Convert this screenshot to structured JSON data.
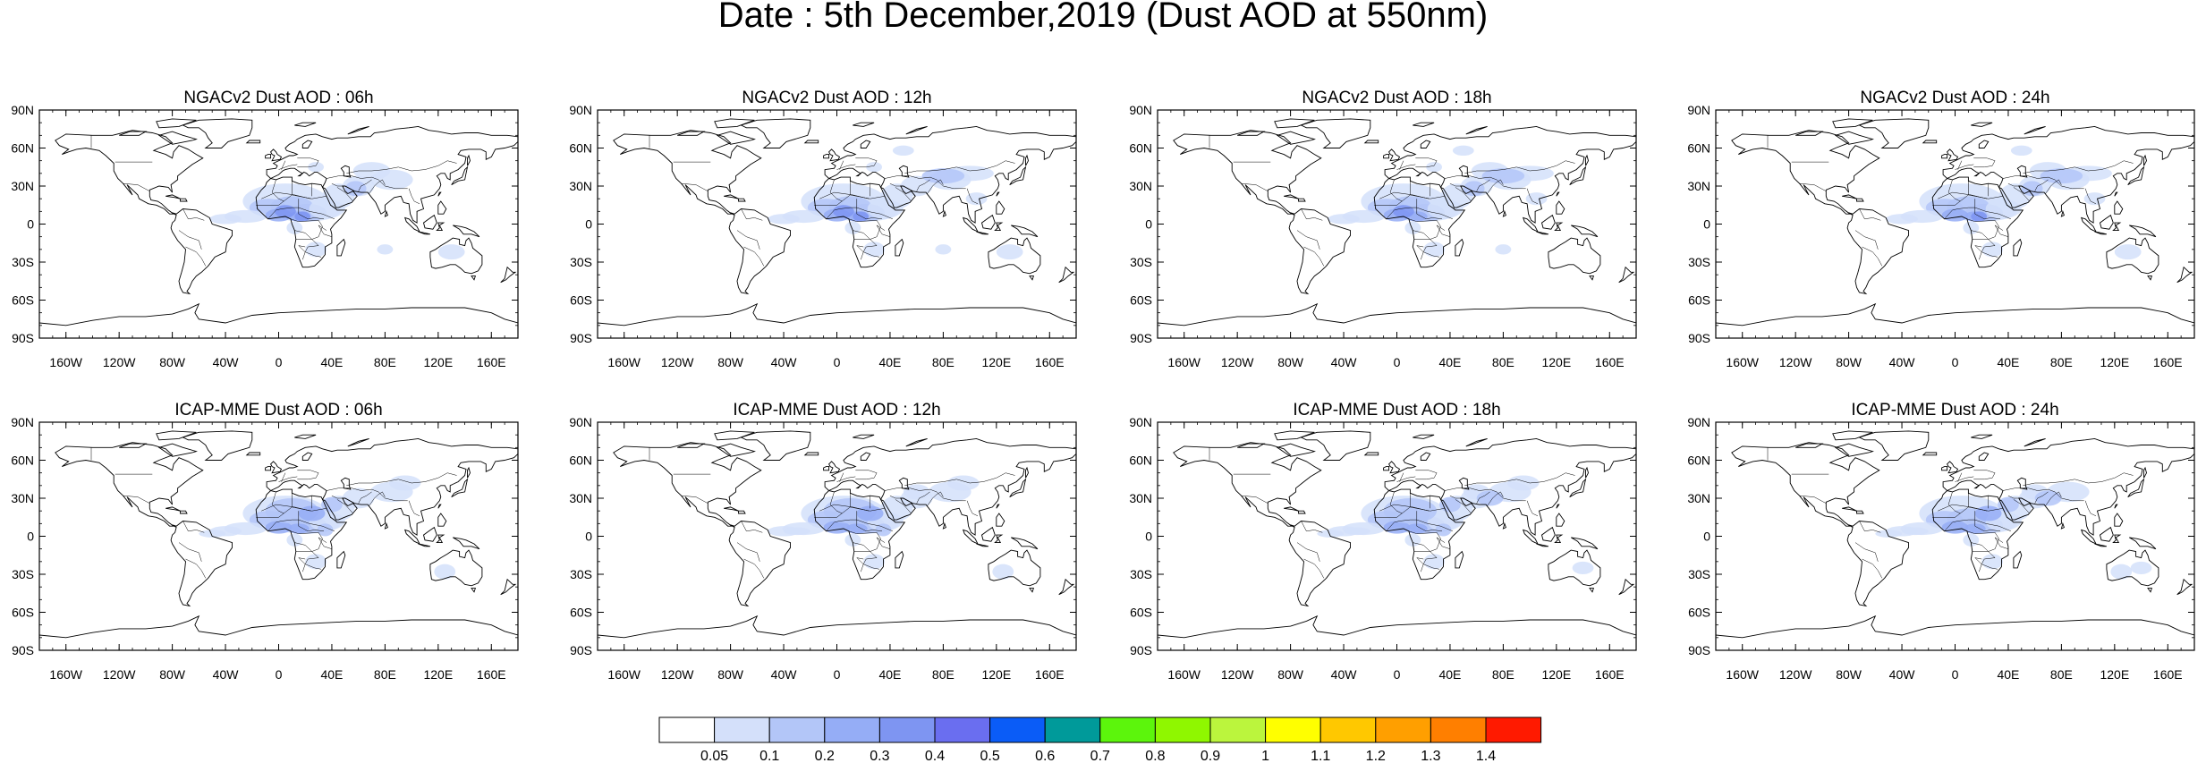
{
  "title": "Date : 5th December,2019 (Dust AOD at 550nm)",
  "panels": [
    {
      "id": "ngac-06",
      "title": "NGACv2 Dust AOD : 06h"
    },
    {
      "id": "ngac-12",
      "title": "NGACv2 Dust AOD : 12h"
    },
    {
      "id": "ngac-18",
      "title": "NGACv2 Dust AOD : 18h"
    },
    {
      "id": "ngac-24",
      "title": "NGACv2 Dust AOD : 24h"
    },
    {
      "id": "icap-06",
      "title": "ICAP-MME Dust AOD : 06h"
    },
    {
      "id": "icap-12",
      "title": "ICAP-MME Dust AOD : 12h"
    },
    {
      "id": "icap-18",
      "title": "ICAP-MME Dust AOD : 18h"
    },
    {
      "id": "icap-24",
      "title": "ICAP-MME Dust AOD : 24h"
    }
  ],
  "axes": {
    "lat_ticks": [
      "90N",
      "60N",
      "30N",
      "0",
      "30S",
      "60S",
      "90S"
    ],
    "lon_ticks": [
      "160W",
      "120W",
      "80W",
      "40W",
      "0",
      "40E",
      "80E",
      "120E",
      "160E"
    ],
    "lat_range": [
      -90,
      90
    ],
    "lon_range": [
      -180,
      180
    ]
  },
  "colorbar": {
    "labels": [
      "0.05",
      "0.1",
      "0.2",
      "0.3",
      "0.4",
      "0.5",
      "0.6",
      "0.7",
      "0.8",
      "0.9",
      "1",
      "1.1",
      "1.2",
      "1.3",
      "1.4"
    ],
    "colors": [
      "#ffffff",
      "#d4e0fa",
      "#b3c6f8",
      "#95adf6",
      "#7e95f2",
      "#6a6ef0",
      "#0a5cf7",
      "#009a9a",
      "#5cf50c",
      "#8ff700",
      "#bbf53d",
      "#ffff00",
      "#ffc800",
      "#ff9f00",
      "#ff7f00",
      "#ff1a00"
    ]
  },
  "style": {
    "dust_colors": [
      "#d4e0fa",
      "#b3c6f8",
      "#95adf6",
      "#7e95f2"
    ],
    "coast_color": "#000000"
  }
}
